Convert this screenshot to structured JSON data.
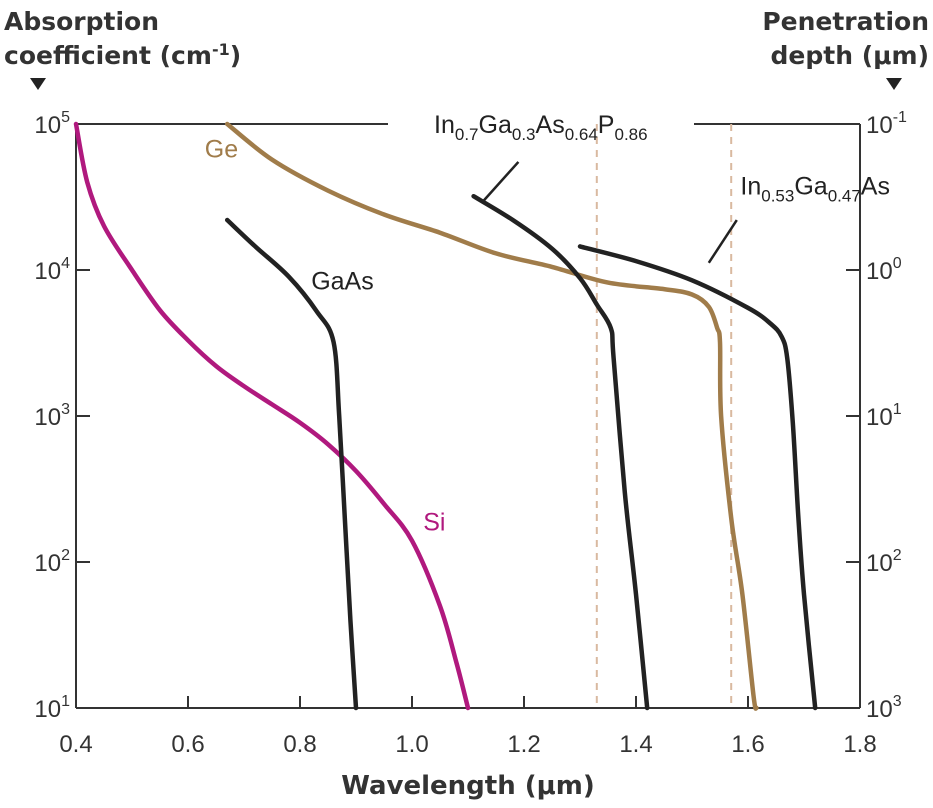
{
  "chart_data": {
    "type": "line",
    "title": "",
    "xlabel": "Wavelength (μm)",
    "ylabel": "Absorption coefficient (cm-1)",
    "ylabel_lines": [
      "Absorption",
      "coefficient (cm",
      "-1",
      ")"
    ],
    "y2label": "Penetration depth (μm)",
    "y2label_lines": [
      "Penetration",
      "depth (μm)"
    ],
    "xlim": [
      0.4,
      1.8
    ],
    "ylim": [
      10,
      100000
    ],
    "yscale": "log",
    "grid": false,
    "x_ticks": [
      {
        "value": 0.4,
        "label": "0.4"
      },
      {
        "value": 0.6,
        "label": "0.6"
      },
      {
        "value": 0.8,
        "label": "0.8"
      },
      {
        "value": 1.0,
        "label": "1.0"
      },
      {
        "value": 1.2,
        "label": "1.2"
      },
      {
        "value": 1.4,
        "label": "1.4"
      },
      {
        "value": 1.6,
        "label": "1.6"
      },
      {
        "value": 1.8,
        "label": "1.8"
      }
    ],
    "y_ticks": [
      {
        "value": 10,
        "base": "10",
        "exp": "1"
      },
      {
        "value": 100,
        "base": "10",
        "exp": "2"
      },
      {
        "value": 1000,
        "base": "10",
        "exp": "3"
      },
      {
        "value": 10000,
        "base": "10",
        "exp": "4"
      },
      {
        "value": 100000,
        "base": "10",
        "exp": "5"
      }
    ],
    "y2_ticks": [
      {
        "value": 10,
        "base": "10",
        "exp": "3"
      },
      {
        "value": 100,
        "base": "10",
        "exp": "2"
      },
      {
        "value": 1000,
        "base": "10",
        "exp": "1"
      },
      {
        "value": 10000,
        "base": "10",
        "exp": "0"
      },
      {
        "value": 100000,
        "base": "10",
        "exp": "-1"
      }
    ],
    "reference_lines": [
      1.33,
      1.57
    ],
    "reference_color": "#d9b9a0",
    "series": [
      {
        "name": "Si",
        "color": "#b0197e",
        "label_parts": [
          {
            "t": "Si"
          }
        ],
        "points": [
          [
            0.4,
            100000
          ],
          [
            0.42,
            40000
          ],
          [
            0.45,
            20000
          ],
          [
            0.5,
            10000
          ],
          [
            0.55,
            5300
          ],
          [
            0.6,
            3300
          ],
          [
            0.65,
            2200
          ],
          [
            0.7,
            1600
          ],
          [
            0.75,
            1200
          ],
          [
            0.8,
            900
          ],
          [
            0.85,
            640
          ],
          [
            0.9,
            420
          ],
          [
            0.95,
            250
          ],
          [
            1.0,
            140
          ],
          [
            1.05,
            50
          ],
          [
            1.08,
            20
          ],
          [
            1.1,
            10
          ]
        ],
        "label_at": [
          1.02,
          190
        ]
      },
      {
        "name": "Ge",
        "color": "#a07c4a",
        "label_parts": [
          {
            "t": "Ge"
          }
        ],
        "points": [
          [
            0.67,
            100000
          ],
          [
            0.75,
            57000
          ],
          [
            0.85,
            35000
          ],
          [
            0.95,
            24000
          ],
          [
            1.05,
            18000
          ],
          [
            1.15,
            13000
          ],
          [
            1.25,
            10500
          ],
          [
            1.35,
            8200
          ],
          [
            1.45,
            7400
          ],
          [
            1.5,
            6800
          ],
          [
            1.53,
            5600
          ],
          [
            1.545,
            4000
          ],
          [
            1.55,
            3200
          ],
          [
            1.552,
            1000
          ],
          [
            1.57,
            200
          ],
          [
            1.59,
            60
          ],
          [
            1.61,
            12
          ],
          [
            1.615,
            10
          ]
        ],
        "label_at": [
          0.63,
          68000
        ]
      },
      {
        "name": "GaAs",
        "color": "#222222",
        "label_parts": [
          {
            "t": "GaAs"
          }
        ],
        "points": [
          [
            0.67,
            22000
          ],
          [
            0.72,
            14500
          ],
          [
            0.78,
            9000
          ],
          [
            0.83,
            5200
          ],
          [
            0.86,
            3200
          ],
          [
            0.87,
            1000
          ],
          [
            0.88,
            200
          ],
          [
            0.89,
            40
          ],
          [
            0.9,
            10
          ]
        ],
        "label_at": [
          0.82,
          8500
        ]
      },
      {
        "name": "In0.7Ga0.3As0.64P0.86",
        "color": "#222222",
        "label_parts": [
          {
            "t": "In"
          },
          {
            "s": "0.7"
          },
          {
            "t": "Ga"
          },
          {
            "s": "0.3"
          },
          {
            "t": "As"
          },
          {
            "s": "0.64"
          },
          {
            "t": "P"
          },
          {
            "s": "0.86"
          }
        ],
        "points": [
          [
            1.11,
            32000
          ],
          [
            1.18,
            22000
          ],
          [
            1.25,
            14000
          ],
          [
            1.3,
            8800
          ],
          [
            1.33,
            5800
          ],
          [
            1.355,
            4000
          ],
          [
            1.36,
            2500
          ],
          [
            1.38,
            300
          ],
          [
            1.4,
            60
          ],
          [
            1.42,
            10
          ]
        ],
        "label_at": [
          1.23,
          100000
        ],
        "leader": [
          [
            1.19,
            55000
          ],
          [
            1.125,
            29000
          ]
        ]
      },
      {
        "name": "In0.53Ga0.47As",
        "color": "#222222",
        "label_parts": [
          {
            "t": "In"
          },
          {
            "s": "0.53"
          },
          {
            "t": "Ga"
          },
          {
            "s": "0.47"
          },
          {
            "t": "As"
          }
        ],
        "points": [
          [
            1.3,
            14500
          ],
          [
            1.4,
            11500
          ],
          [
            1.5,
            8500
          ],
          [
            1.6,
            5500
          ],
          [
            1.64,
            4300
          ],
          [
            1.66,
            3500
          ],
          [
            1.67,
            2500
          ],
          [
            1.68,
            900
          ],
          [
            1.69,
            200
          ],
          [
            1.7,
            60
          ],
          [
            1.72,
            10
          ]
        ],
        "label_at": [
          1.72,
          38000
        ],
        "leader": [
          [
            1.58,
            22000
          ],
          [
            1.53,
            11200
          ]
        ]
      }
    ]
  }
}
